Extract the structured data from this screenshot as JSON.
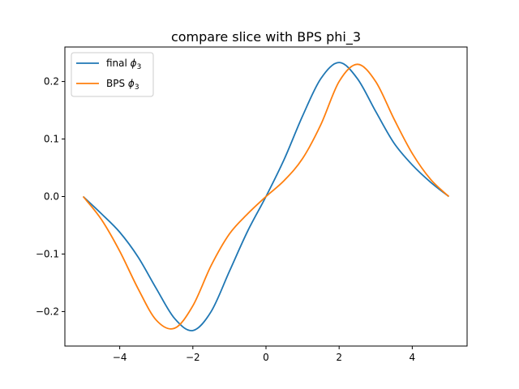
{
  "chart_data": {
    "type": "line",
    "title": "compare slice with BPS phi_3",
    "xlabel": "",
    "ylabel": "",
    "xlim": [
      -5.5,
      5.5
    ],
    "ylim": [
      -0.26,
      0.26
    ],
    "grid": false,
    "legend_position": "top-left",
    "x_ticks": [
      -4,
      -2,
      0,
      2,
      4
    ],
    "x_tick_labels": [
      "−4",
      "−2",
      "0",
      "2",
      "4"
    ],
    "y_ticks": [
      -0.2,
      -0.1,
      0.0,
      0.1,
      0.2
    ],
    "y_tick_labels": [
      "−0.2",
      "−0.1",
      "0.0",
      "0.1",
      "0.2"
    ],
    "series": [
      {
        "name": "final ϕ3",
        "legend_main": "final ",
        "legend_symbol": "ϕ",
        "legend_sub": "3",
        "color": "#1f77b4",
        "x": [
          -5.0,
          -4.5,
          -4.0,
          -3.5,
          -3.0,
          -2.5,
          -2.0,
          -1.5,
          -1.0,
          -0.5,
          0.0,
          0.5,
          1.0,
          1.5,
          2.0,
          2.5,
          3.0,
          3.5,
          4.0,
          4.5,
          5.0
        ],
        "y": [
          0.0,
          -0.03,
          -0.062,
          -0.105,
          -0.16,
          -0.212,
          -0.233,
          -0.2,
          -0.13,
          -0.06,
          0.0,
          0.065,
          0.14,
          0.205,
          0.233,
          0.205,
          0.148,
          0.093,
          0.055,
          0.025,
          0.0
        ]
      },
      {
        "name": "BPS ϕ3",
        "legend_main": "BPS ",
        "legend_symbol": "ϕ",
        "legend_sub": "3",
        "color": "#ff7f0e",
        "x": [
          -5.0,
          -4.5,
          -4.0,
          -3.5,
          -3.0,
          -2.5,
          -2.0,
          -1.5,
          -1.0,
          -0.5,
          0.0,
          0.5,
          1.0,
          1.5,
          2.0,
          2.5,
          3.0,
          3.5,
          4.0,
          4.5,
          5.0
        ],
        "y": [
          0.0,
          -0.04,
          -0.095,
          -0.16,
          -0.215,
          -0.229,
          -0.19,
          -0.12,
          -0.065,
          -0.03,
          0.0,
          0.028,
          0.066,
          0.125,
          0.2,
          0.23,
          0.2,
          0.135,
          0.075,
          0.03,
          0.0
        ]
      }
    ]
  }
}
